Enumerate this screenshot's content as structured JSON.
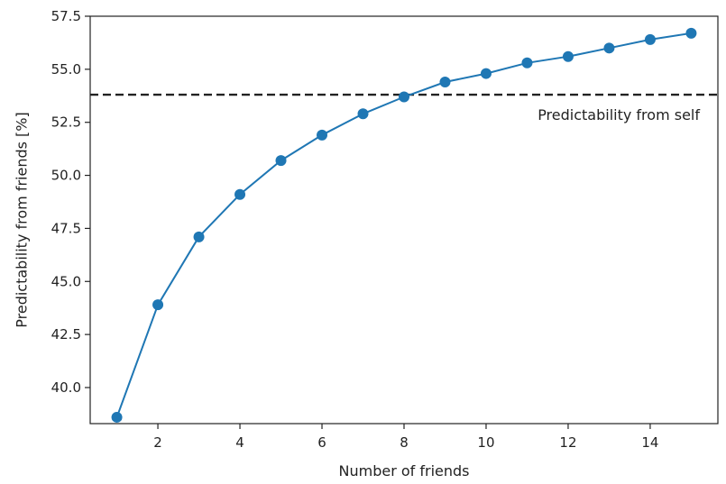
{
  "chart_data": {
    "type": "line",
    "title": "",
    "xlabel": "Number of friends",
    "ylabel": "Predictability from friends [%]",
    "xlim": [
      0.35,
      15.65
    ],
    "ylim": [
      38.3,
      57.5
    ],
    "xticks": [
      2,
      4,
      6,
      8,
      10,
      12,
      14
    ],
    "yticks": [
      40.0,
      42.5,
      45.0,
      47.5,
      50.0,
      52.5,
      55.0,
      57.5
    ],
    "xtick_labels": [
      "2",
      "4",
      "6",
      "8",
      "10",
      "12",
      "14"
    ],
    "ytick_labels": [
      "40.0",
      "42.5",
      "45.0",
      "47.5",
      "50.0",
      "52.5",
      "55.0",
      "57.5"
    ],
    "grid": false,
    "series": [
      {
        "color": "#1f77b4",
        "marker": "circle",
        "x": [
          1,
          2,
          3,
          4,
          5,
          6,
          7,
          8,
          9,
          10,
          11,
          12,
          13,
          14,
          15
        ],
        "y": [
          38.6,
          43.9,
          47.1,
          49.1,
          50.7,
          51.9,
          52.9,
          53.7,
          54.4,
          54.8,
          55.3,
          55.6,
          56.0,
          56.4,
          56.7
        ]
      }
    ],
    "reference_line": {
      "orientation": "horizontal",
      "y": 53.8,
      "style": "dashed",
      "color": "#222222",
      "label": "Predictability from self"
    }
  }
}
